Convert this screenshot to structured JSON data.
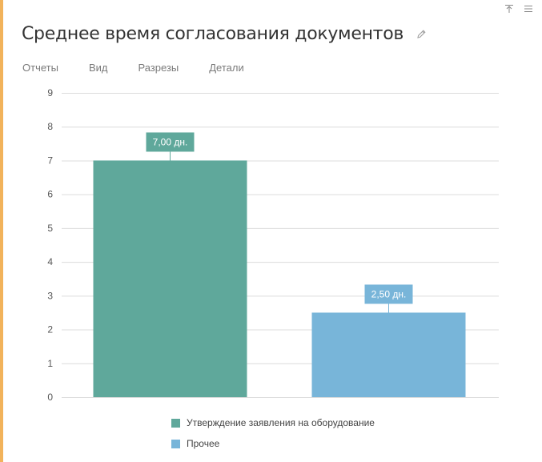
{
  "header": {
    "title": "Среднее время согласования документов",
    "icons": {
      "pin": "pin-icon",
      "menu": "menu-icon",
      "edit": "pencil-icon"
    }
  },
  "tabs": [
    {
      "label": "Отчеты"
    },
    {
      "label": "Вид"
    },
    {
      "label": "Разрезы"
    },
    {
      "label": "Детали"
    }
  ],
  "colors": {
    "accent_stripe": "#f2b35b",
    "series1": "#5fa89b",
    "series2": "#78b5d9",
    "grid": "#dcdcdc",
    "axis_text": "#555555"
  },
  "chart_data": {
    "type": "bar",
    "categories": [
      "Утверждение заявления на оборудование",
      "Прочее"
    ],
    "values": [
      7.0,
      2.5
    ],
    "data_labels": [
      "7,00 дн.",
      "2,50 дн."
    ],
    "yticks": [
      "0",
      "1",
      "2",
      "3",
      "4",
      "5",
      "6",
      "7",
      "8",
      "9"
    ],
    "ylim": [
      0,
      9
    ],
    "grid": true,
    "legend_position": "bottom",
    "legend": [
      {
        "name": "Утверждение заявления на оборудование"
      },
      {
        "name": "Прочее"
      }
    ]
  }
}
